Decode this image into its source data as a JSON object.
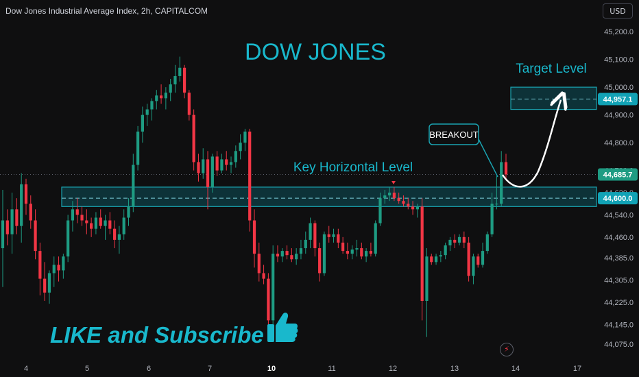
{
  "header": {
    "title": "Dow Jones Industrial Average Index, 2h, CAPITALCOM",
    "currency_label": "USD"
  },
  "annotations": {
    "main_title": "DOW JONES",
    "target_label": "Target Level",
    "key_level_label": "Key Horizontal Level",
    "breakout_label": "BREAKOUT",
    "cta_text": "LIKE and Subscribe"
  },
  "price_badges": {
    "target": "44,957.1",
    "current": "44,685.7",
    "key": "44,600.0"
  },
  "icons": {
    "thumb": "thumbs-up-icon",
    "bolt": "lightning-icon"
  },
  "colors": {
    "background": "#0f0f10",
    "up": "#1e9c83",
    "down": "#f23645",
    "zone_fill": "#0e3f46",
    "zone_border": "#1aa3b1",
    "title_text": "#19b8cc",
    "axis_text": "#b2b5be"
  },
  "chart_data": {
    "type": "candlestick",
    "title": "Dow Jones Industrial Average Index, 2h, CAPITALCOM",
    "y_axis_ticks": [
      "44,075.0",
      "44,145.0",
      "44,225.0",
      "44,305.0",
      "44,385.0",
      "44,460.0",
      "44,540.0",
      "44,620.0",
      "44,700.0",
      "44,800.0",
      "44,900.0",
      "45,000.0",
      "45,100.0",
      "45,200.0"
    ],
    "x_axis_ticks": [
      "4",
      "5",
      "6",
      "7",
      "10",
      "11",
      "12",
      "13",
      "14",
      "17"
    ],
    "x_axis_bold": [
      "10"
    ],
    "ylim": [
      44030,
      45230
    ],
    "key_zone": [
      44570,
      44640
    ],
    "key_level": 44600,
    "target_zone": [
      44920,
      45000
    ],
    "target_level": 44957.1,
    "current_price": 44685.7,
    "candles": [
      {
        "o": 44420,
        "h": 44630,
        "l": 44280,
        "c": 44520
      },
      {
        "o": 44520,
        "h": 44560,
        "l": 44430,
        "c": 44470
      },
      {
        "o": 44470,
        "h": 44620,
        "l": 44400,
        "c": 44560
      },
      {
        "o": 44560,
        "h": 44600,
        "l": 44470,
        "c": 44500
      },
      {
        "o": 44500,
        "h": 44690,
        "l": 44440,
        "c": 44650
      },
      {
        "o": 44650,
        "h": 44670,
        "l": 44540,
        "c": 44580
      },
      {
        "o": 44580,
        "h": 44610,
        "l": 44490,
        "c": 44520
      },
      {
        "o": 44520,
        "h": 44560,
        "l": 44380,
        "c": 44410
      },
      {
        "o": 44410,
        "h": 44440,
        "l": 44250,
        "c": 44310
      },
      {
        "o": 44310,
        "h": 44370,
        "l": 44230,
        "c": 44260
      },
      {
        "o": 44260,
        "h": 44340,
        "l": 44220,
        "c": 44330
      },
      {
        "o": 44330,
        "h": 44390,
        "l": 44280,
        "c": 44360
      },
      {
        "o": 44360,
        "h": 44390,
        "l": 44300,
        "c": 44340
      },
      {
        "o": 44340,
        "h": 44400,
        "l": 44310,
        "c": 44390
      },
      {
        "o": 44390,
        "h": 44540,
        "l": 44370,
        "c": 44520
      },
      {
        "o": 44520,
        "h": 44590,
        "l": 44480,
        "c": 44560
      },
      {
        "o": 44560,
        "h": 44600,
        "l": 44510,
        "c": 44540
      },
      {
        "o": 44540,
        "h": 44570,
        "l": 44500,
        "c": 44520
      },
      {
        "o": 44520,
        "h": 44560,
        "l": 44470,
        "c": 44510
      },
      {
        "o": 44510,
        "h": 44530,
        "l": 44460,
        "c": 44490
      },
      {
        "o": 44490,
        "h": 44550,
        "l": 44470,
        "c": 44530
      },
      {
        "o": 44530,
        "h": 44560,
        "l": 44490,
        "c": 44500
      },
      {
        "o": 44500,
        "h": 44540,
        "l": 44450,
        "c": 44520
      },
      {
        "o": 44520,
        "h": 44550,
        "l": 44470,
        "c": 44490
      },
      {
        "o": 44490,
        "h": 44520,
        "l": 44420,
        "c": 44450
      },
      {
        "o": 44450,
        "h": 44500,
        "l": 44400,
        "c": 44470
      },
      {
        "o": 44470,
        "h": 44560,
        "l": 44450,
        "c": 44530
      },
      {
        "o": 44530,
        "h": 44600,
        "l": 44500,
        "c": 44570
      },
      {
        "o": 44570,
        "h": 44760,
        "l": 44550,
        "c": 44720
      },
      {
        "o": 44720,
        "h": 44860,
        "l": 44700,
        "c": 44840
      },
      {
        "o": 44840,
        "h": 44930,
        "l": 44800,
        "c": 44900
      },
      {
        "o": 44900,
        "h": 44940,
        "l": 44860,
        "c": 44920
      },
      {
        "o": 44920,
        "h": 44960,
        "l": 44880,
        "c": 44950
      },
      {
        "o": 44950,
        "h": 44990,
        "l": 44920,
        "c": 44970
      },
      {
        "o": 44970,
        "h": 45010,
        "l": 44940,
        "c": 44960
      },
      {
        "o": 44960,
        "h": 45000,
        "l": 44920,
        "c": 44980
      },
      {
        "o": 44980,
        "h": 45030,
        "l": 44950,
        "c": 45010
      },
      {
        "o": 45010,
        "h": 45080,
        "l": 44980,
        "c": 45040
      },
      {
        "o": 45040,
        "h": 45110,
        "l": 45020,
        "c": 45070
      },
      {
        "o": 45070,
        "h": 45080,
        "l": 44960,
        "c": 44980
      },
      {
        "o": 44980,
        "h": 44990,
        "l": 44880,
        "c": 44900
      },
      {
        "o": 44900,
        "h": 44920,
        "l": 44700,
        "c": 44730
      },
      {
        "o": 44730,
        "h": 44760,
        "l": 44660,
        "c": 44690
      },
      {
        "o": 44690,
        "h": 44780,
        "l": 44670,
        "c": 44740
      },
      {
        "o": 44740,
        "h": 44770,
        "l": 44560,
        "c": 44640
      },
      {
        "o": 44640,
        "h": 44760,
        "l": 44620,
        "c": 44750
      },
      {
        "o": 44750,
        "h": 44770,
        "l": 44680,
        "c": 44700
      },
      {
        "o": 44700,
        "h": 44760,
        "l": 44690,
        "c": 44740
      },
      {
        "o": 44740,
        "h": 44770,
        "l": 44700,
        "c": 44720
      },
      {
        "o": 44720,
        "h": 44750,
        "l": 44690,
        "c": 44730
      },
      {
        "o": 44730,
        "h": 44790,
        "l": 44710,
        "c": 44770
      },
      {
        "o": 44770,
        "h": 44830,
        "l": 44740,
        "c": 44800
      },
      {
        "o": 44800,
        "h": 44850,
        "l": 44770,
        "c": 44840
      },
      {
        "o": 44840,
        "h": 44850,
        "l": 44480,
        "c": 44520
      },
      {
        "o": 44520,
        "h": 44560,
        "l": 44350,
        "c": 44400
      },
      {
        "o": 44400,
        "h": 44440,
        "l": 44300,
        "c": 44330
      },
      {
        "o": 44330,
        "h": 44360,
        "l": 44290,
        "c": 44310
      },
      {
        "o": 44310,
        "h": 44330,
        "l": 44140,
        "c": 44160
      },
      {
        "o": 44160,
        "h": 44430,
        "l": 44140,
        "c": 44400
      },
      {
        "o": 44400,
        "h": 44430,
        "l": 44370,
        "c": 44390
      },
      {
        "o": 44390,
        "h": 44420,
        "l": 44370,
        "c": 44410
      },
      {
        "o": 44410,
        "h": 44430,
        "l": 44380,
        "c": 44395
      },
      {
        "o": 44395,
        "h": 44420,
        "l": 44370,
        "c": 44380
      },
      {
        "o": 44380,
        "h": 44420,
        "l": 44360,
        "c": 44400
      },
      {
        "o": 44400,
        "h": 44450,
        "l": 44380,
        "c": 44420
      },
      {
        "o": 44420,
        "h": 44480,
        "l": 44400,
        "c": 44450
      },
      {
        "o": 44450,
        "h": 44530,
        "l": 44420,
        "c": 44510
      },
      {
        "o": 44510,
        "h": 44520,
        "l": 44390,
        "c": 44420
      },
      {
        "o": 44420,
        "h": 44440,
        "l": 44300,
        "c": 44330
      },
      {
        "o": 44330,
        "h": 44480,
        "l": 44320,
        "c": 44470
      },
      {
        "o": 44470,
        "h": 44500,
        "l": 44440,
        "c": 44460
      },
      {
        "o": 44460,
        "h": 44490,
        "l": 44440,
        "c": 44470
      },
      {
        "o": 44470,
        "h": 44490,
        "l": 44420,
        "c": 44440
      },
      {
        "o": 44440,
        "h": 44460,
        "l": 44400,
        "c": 44410
      },
      {
        "o": 44410,
        "h": 44440,
        "l": 44380,
        "c": 44400
      },
      {
        "o": 44400,
        "h": 44430,
        "l": 44380,
        "c": 44415
      },
      {
        "o": 44415,
        "h": 44450,
        "l": 44390,
        "c": 44420
      },
      {
        "o": 44420,
        "h": 44440,
        "l": 44380,
        "c": 44390
      },
      {
        "o": 44390,
        "h": 44420,
        "l": 44370,
        "c": 44410
      },
      {
        "o": 44410,
        "h": 44440,
        "l": 44390,
        "c": 44400
      },
      {
        "o": 44400,
        "h": 44520,
        "l": 44390,
        "c": 44510
      },
      {
        "o": 44510,
        "h": 44620,
        "l": 44500,
        "c": 44600
      },
      {
        "o": 44600,
        "h": 44630,
        "l": 44580,
        "c": 44610
      },
      {
        "o": 44610,
        "h": 44640,
        "l": 44590,
        "c": 44620
      },
      {
        "o": 44620,
        "h": 44640,
        "l": 44590,
        "c": 44600
      },
      {
        "o": 44600,
        "h": 44620,
        "l": 44580,
        "c": 44590
      },
      {
        "o": 44590,
        "h": 44610,
        "l": 44570,
        "c": 44580
      },
      {
        "o": 44580,
        "h": 44600,
        "l": 44560,
        "c": 44570
      },
      {
        "o": 44570,
        "h": 44590,
        "l": 44540,
        "c": 44560
      },
      {
        "o": 44560,
        "h": 44580,
        "l": 44530,
        "c": 44570
      },
      {
        "o": 44570,
        "h": 44600,
        "l": 44160,
        "c": 44230
      },
      {
        "o": 44230,
        "h": 44420,
        "l": 44100,
        "c": 44390
      },
      {
        "o": 44390,
        "h": 44400,
        "l": 44360,
        "c": 44370
      },
      {
        "o": 44370,
        "h": 44400,
        "l": 44360,
        "c": 44390
      },
      {
        "o": 44390,
        "h": 44410,
        "l": 44370,
        "c": 44395
      },
      {
        "o": 44395,
        "h": 44440,
        "l": 44380,
        "c": 44430
      },
      {
        "o": 44430,
        "h": 44460,
        "l": 44410,
        "c": 44450
      },
      {
        "o": 44450,
        "h": 44470,
        "l": 44420,
        "c": 44440
      },
      {
        "o": 44440,
        "h": 44470,
        "l": 44430,
        "c": 44460
      },
      {
        "o": 44460,
        "h": 44480,
        "l": 44420,
        "c": 44440
      },
      {
        "o": 44440,
        "h": 44460,
        "l": 44300,
        "c": 44320
      },
      {
        "o": 44320,
        "h": 44400,
        "l": 44290,
        "c": 44390
      },
      {
        "o": 44390,
        "h": 44400,
        "l": 44350,
        "c": 44360
      },
      {
        "o": 44360,
        "h": 44440,
        "l": 44350,
        "c": 44410
      },
      {
        "o": 44410,
        "h": 44480,
        "l": 44400,
        "c": 44470
      },
      {
        "o": 44470,
        "h": 44620,
        "l": 44460,
        "c": 44580
      },
      {
        "o": 44580,
        "h": 44680,
        "l": 44560,
        "c": 44580
      },
      {
        "o": 44580,
        "h": 44770,
        "l": 44570,
        "c": 44730
      },
      {
        "o": 44730,
        "h": 44760,
        "l": 44670,
        "c": 44685.7
      }
    ]
  }
}
